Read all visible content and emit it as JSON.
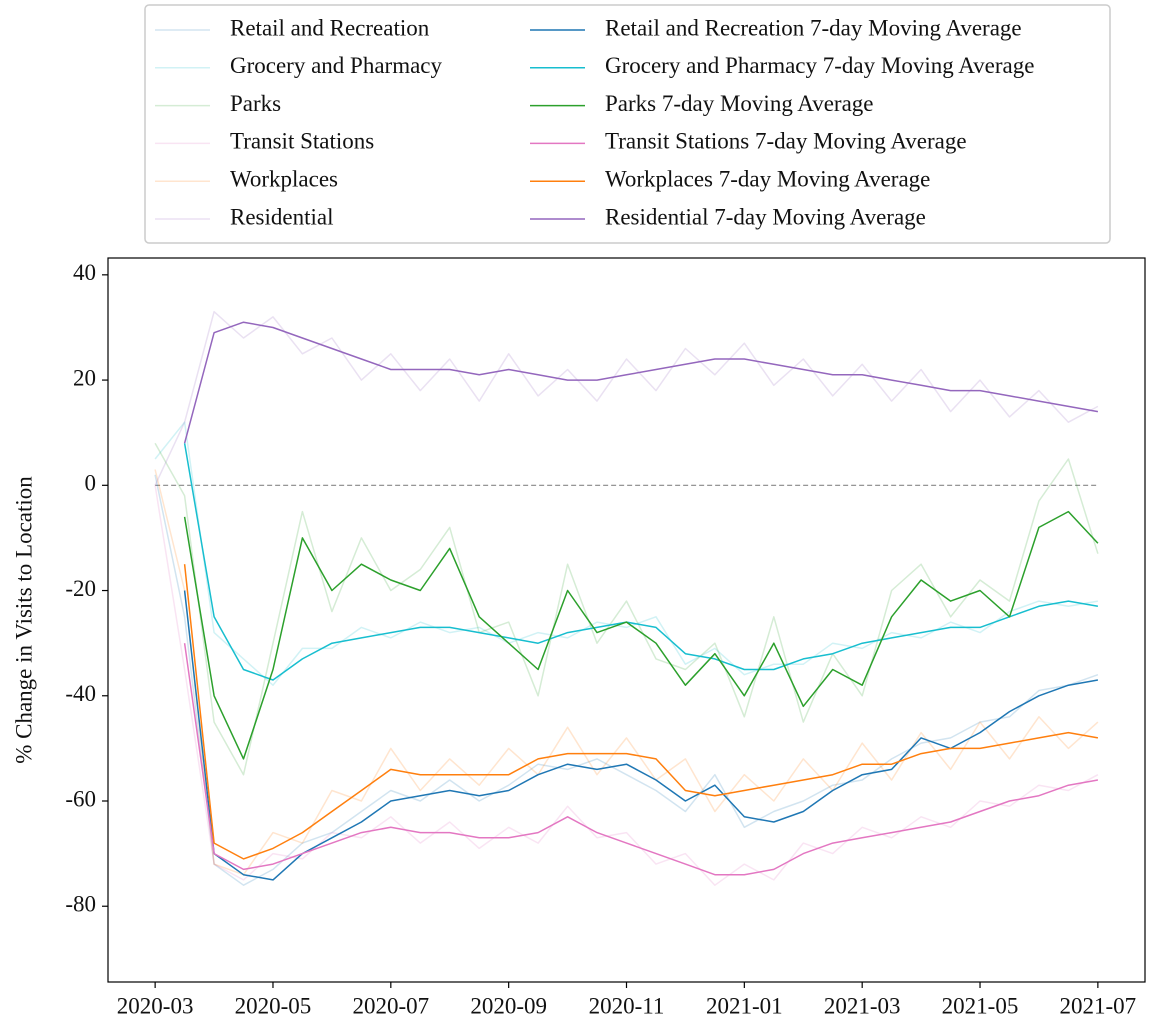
{
  "chart_data": {
    "type": "line",
    "ylabel": "% Change in Visits to Location",
    "x": [
      0,
      0.5,
      1,
      1.5,
      2,
      2.5,
      3,
      3.5,
      4,
      4.5,
      5,
      5.5,
      6,
      6.5,
      7,
      7.5,
      8,
      8.5,
      9,
      9.5,
      10,
      10.5,
      11,
      11.5,
      12,
      12.5,
      13,
      13.5,
      14,
      14.5,
      15,
      15.5,
      16
    ],
    "xlim": [
      -0.8,
      16.8
    ],
    "xticks": [
      {
        "value": 0,
        "label": "2020-03"
      },
      {
        "value": 2,
        "label": "2020-05"
      },
      {
        "value": 4,
        "label": "2020-07"
      },
      {
        "value": 6,
        "label": "2020-09"
      },
      {
        "value": 8,
        "label": "2020-11"
      },
      {
        "value": 10,
        "label": "2021-01"
      },
      {
        "value": 12,
        "label": "2021-03"
      },
      {
        "value": 14,
        "label": "2021-05"
      },
      {
        "value": 16,
        "label": "2021-07"
      }
    ],
    "ylim": [
      -94.4,
      43.2
    ],
    "yticks": [
      -80,
      -60,
      -40,
      -20,
      0,
      20,
      40
    ],
    "reference_line": 0,
    "legend": "top",
    "series": [
      {
        "name": "Retail and Recreation",
        "color": "#1f77b4",
        "alpha": 0.2,
        "values": [
          2,
          -25,
          -72,
          -76,
          -73,
          -68,
          -66,
          -62,
          -58,
          -60,
          -56,
          -60,
          -57,
          -53,
          -54,
          -52,
          -55,
          -58,
          -62,
          -55,
          -65,
          -62,
          -60,
          -57,
          -56,
          -52,
          -49,
          -48,
          -45,
          -44,
          -39,
          -38,
          -36
        ]
      },
      {
        "name": "Grocery and Pharmacy",
        "color": "#17becf",
        "alpha": 0.2,
        "values": [
          5,
          12,
          -28,
          -33,
          -38,
          -31,
          -31,
          -27,
          -29,
          -26,
          -28,
          -27,
          -30,
          -28,
          -29,
          -26,
          -27,
          -25,
          -34,
          -31,
          -36,
          -34,
          -34,
          -30,
          -31,
          -28,
          -29,
          -26,
          -28,
          -24,
          -22,
          -23,
          -22
        ]
      },
      {
        "name": "Parks",
        "color": "#2ca02c",
        "alpha": 0.2,
        "values": [
          8,
          -2,
          -45,
          -55,
          -30,
          -5,
          -24,
          -10,
          -20,
          -16,
          -8,
          -28,
          -26,
          -40,
          -15,
          -30,
          -22,
          -33,
          -35,
          -30,
          -44,
          -25,
          -45,
          -32,
          -40,
          -20,
          -15,
          -25,
          -18,
          -22,
          -3,
          5,
          -13
        ]
      },
      {
        "name": "Transit Stations",
        "color": "#e377c2",
        "alpha": 0.2,
        "values": [
          0,
          -35,
          -72,
          -75,
          -70,
          -71,
          -66,
          -67,
          -63,
          -68,
          -64,
          -69,
          -65,
          -68,
          -61,
          -67,
          -66,
          -72,
          -70,
          -76,
          -72,
          -75,
          -68,
          -70,
          -65,
          -67,
          -63,
          -65,
          -60,
          -61,
          -57,
          -58,
          -55
        ]
      },
      {
        "name": "Workplaces",
        "color": "#ff7f0e",
        "alpha": 0.2,
        "values": [
          3,
          -20,
          -72,
          -74,
          -66,
          -68,
          -58,
          -60,
          -50,
          -58,
          -52,
          -57,
          -50,
          -55,
          -46,
          -55,
          -48,
          -56,
          -52,
          -62,
          -55,
          -60,
          -52,
          -58,
          -49,
          -56,
          -47,
          -54,
          -45,
          -52,
          -44,
          -50,
          -45
        ]
      },
      {
        "name": "Residential",
        "color": "#9467bd",
        "alpha": 0.2,
        "values": [
          0,
          12,
          33,
          28,
          32,
          25,
          28,
          20,
          25,
          18,
          24,
          16,
          25,
          17,
          22,
          16,
          24,
          18,
          26,
          21,
          27,
          19,
          24,
          17,
          23,
          16,
          22,
          14,
          20,
          13,
          18,
          12,
          15
        ]
      },
      {
        "name": "Retail and Recreation 7-day Moving Average",
        "color": "#1f77b4",
        "alpha": 1,
        "values": [
          null,
          -20,
          -70,
          -74,
          -75,
          -70,
          -67,
          -64,
          -60,
          -59,
          -58,
          -59,
          -58,
          -55,
          -53,
          -54,
          -53,
          -56,
          -60,
          -57,
          -63,
          -64,
          -62,
          -58,
          -55,
          -54,
          -48,
          -50,
          -47,
          -43,
          -40,
          -38,
          -37
        ]
      },
      {
        "name": "Grocery and Pharmacy 7-day Moving Average",
        "color": "#17becf",
        "alpha": 1,
        "values": [
          null,
          8,
          -25,
          -35,
          -37,
          -33,
          -30,
          -29,
          -28,
          -27,
          -27,
          -28,
          -29,
          -30,
          -28,
          -27,
          -26,
          -27,
          -32,
          -33,
          -35,
          -35,
          -33,
          -32,
          -30,
          -29,
          -28,
          -27,
          -27,
          -25,
          -23,
          -22,
          -23
        ]
      },
      {
        "name": "Parks 7-day Moving Average",
        "color": "#2ca02c",
        "alpha": 1,
        "values": [
          null,
          -6,
          -40,
          -52,
          -35,
          -10,
          -20,
          -15,
          -18,
          -20,
          -12,
          -25,
          -30,
          -35,
          -20,
          -28,
          -26,
          -30,
          -38,
          -32,
          -40,
          -30,
          -42,
          -35,
          -38,
          -25,
          -18,
          -22,
          -20,
          -25,
          -8,
          -5,
          -11
        ]
      },
      {
        "name": "Transit Stations 7-day Moving Average",
        "color": "#e377c2",
        "alpha": 1,
        "values": [
          null,
          -30,
          -70,
          -73,
          -72,
          -70,
          -68,
          -66,
          -65,
          -66,
          -66,
          -67,
          -67,
          -66,
          -63,
          -66,
          -68,
          -70,
          -72,
          -74,
          -74,
          -73,
          -70,
          -68,
          -67,
          -66,
          -65,
          -64,
          -62,
          -60,
          -59,
          -57,
          -56
        ]
      },
      {
        "name": "Workplaces 7-day Moving Average",
        "color": "#ff7f0e",
        "alpha": 1,
        "values": [
          null,
          -15,
          -68,
          -71,
          -69,
          -66,
          -62,
          -58,
          -54,
          -55,
          -55,
          -55,
          -55,
          -52,
          -51,
          -51,
          -51,
          -52,
          -58,
          -59,
          -58,
          -57,
          -56,
          -55,
          -53,
          -53,
          -51,
          -50,
          -50,
          -49,
          -48,
          -47,
          -48
        ]
      },
      {
        "name": "Residential 7-day Moving Average",
        "color": "#9467bd",
        "alpha": 1,
        "values": [
          null,
          8,
          29,
          31,
          30,
          28,
          26,
          24,
          22,
          22,
          22,
          21,
          22,
          21,
          20,
          20,
          21,
          22,
          23,
          24,
          24,
          23,
          22,
          21,
          21,
          20,
          19,
          18,
          18,
          17,
          16,
          15,
          14
        ]
      }
    ]
  }
}
